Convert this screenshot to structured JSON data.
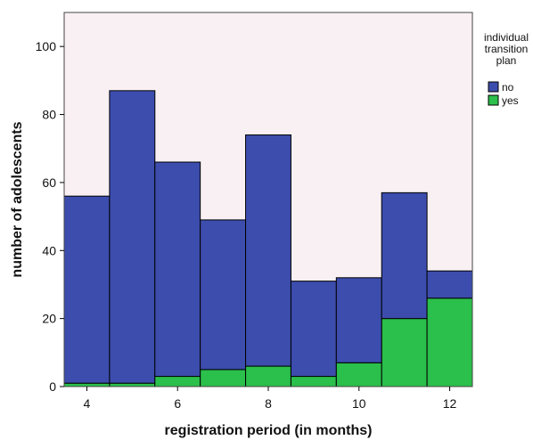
{
  "chart_data": {
    "type": "bar",
    "subtype": "stacked-histogram",
    "title": "",
    "xlabel": "registration period (in months)",
    "ylabel": "number of adolescents",
    "x_bins": [
      4,
      5,
      6,
      7,
      8,
      9,
      10,
      11,
      12
    ],
    "xlim": [
      3.5,
      12.5
    ],
    "ylim": [
      0,
      110
    ],
    "x_ticks": [
      4,
      6,
      8,
      10,
      12
    ],
    "y_ticks": [
      0,
      20,
      40,
      60,
      80,
      100
    ],
    "series": [
      {
        "name": "no",
        "color": "#3c4dad",
        "values": [
          55,
          86,
          63,
          44,
          68,
          28,
          25,
          37,
          8
        ]
      },
      {
        "name": "yes",
        "color": "#2bbf4b",
        "values": [
          1,
          1,
          3,
          5,
          6,
          3,
          7,
          20,
          26
        ]
      }
    ],
    "totals": [
      56,
      87,
      66,
      49,
      74,
      31,
      32,
      57,
      34
    ],
    "legend": {
      "title_lines": [
        "individual",
        "transition",
        "plan"
      ],
      "placement": "right",
      "entries": [
        "no",
        "yes"
      ]
    },
    "grid": false,
    "plot_background": "#f8f0f3"
  }
}
